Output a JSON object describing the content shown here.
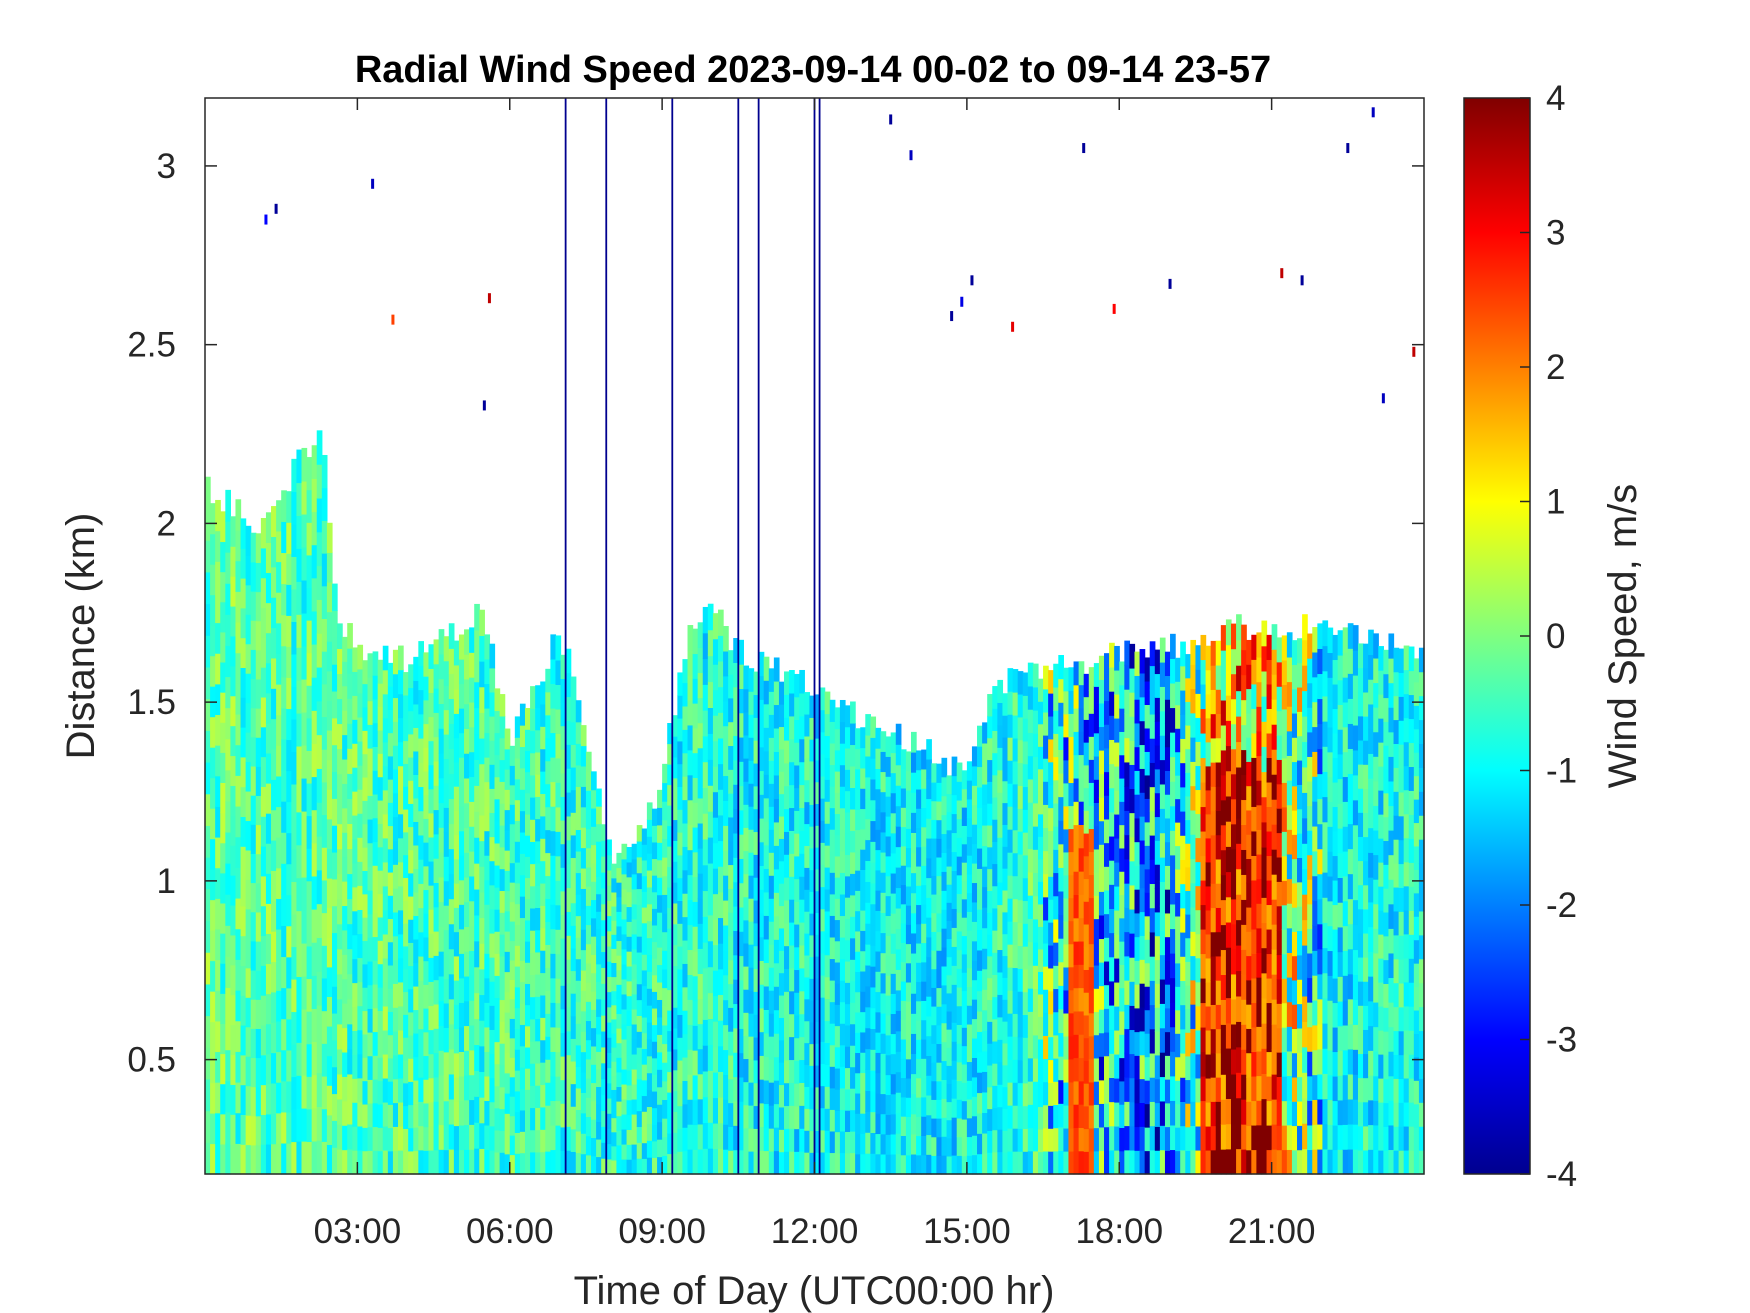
{
  "chart_data": {
    "type": "heatmap",
    "title": "Radial Wind Speed 2023-09-14 00-02 to 09-14 23-57",
    "xlabel": "Time of Day (UTC00:00 hr)",
    "ylabel": "Distance (km)",
    "colorbar_label": "Wind Speed, m/s",
    "colormap": "jet",
    "xlim": [
      0.0,
      24.0
    ],
    "ylim": [
      0.18,
      3.19
    ],
    "clim": [
      -4,
      4
    ],
    "x_ticks": [
      3,
      6,
      9,
      12,
      15,
      18,
      21
    ],
    "x_tick_labels": [
      "03:00",
      "06:00",
      "09:00",
      "12:00",
      "15:00",
      "18:00",
      "21:00"
    ],
    "y_ticks": [
      0.5,
      1,
      1.5,
      2,
      2.5,
      3
    ],
    "y_tick_labels": [
      "0.5",
      "1",
      "1.5",
      "2",
      "2.5",
      "3"
    ],
    "cbar_ticks": [
      4,
      3,
      2,
      1,
      0,
      -1,
      -2,
      -3,
      -4
    ],
    "cbar_tick_labels": [
      "4",
      "3",
      "2",
      "1",
      "0",
      "-1",
      "-2",
      "-3",
      "-4"
    ],
    "data_top_profile": {
      "hour": [
        0.0,
        0.5,
        1.0,
        1.5,
        2.0,
        2.3,
        2.6,
        3.0,
        4.0,
        5.0,
        5.5,
        6.0,
        6.5,
        7.0,
        7.5,
        8.0,
        8.5,
        9.0,
        9.5,
        10.0,
        10.5,
        11.0,
        11.5,
        12.0,
        13.0,
        14.0,
        14.7,
        15.0,
        15.5,
        16.0,
        17.0,
        18.0,
        19.0,
        20.0,
        21.0,
        22.0,
        23.0,
        24.0
      ],
      "top_km": [
        2.1,
        2.05,
        2.0,
        2.1,
        2.2,
        2.3,
        1.75,
        1.65,
        1.62,
        1.7,
        1.75,
        1.4,
        1.55,
        1.7,
        1.4,
        1.05,
        1.1,
        1.3,
        1.7,
        1.75,
        1.65,
        1.6,
        1.58,
        1.55,
        1.45,
        1.38,
        1.32,
        1.35,
        1.5,
        1.58,
        1.6,
        1.65,
        1.65,
        1.7,
        1.72,
        1.7,
        1.68,
        1.65
      ]
    },
    "regime_note_values": {
      "hour": [
        0,
        6,
        12,
        15,
        16.5,
        18,
        19,
        20,
        21,
        22,
        24
      ],
      "typical_speed_ms": [
        -0.3,
        -0.5,
        -0.9,
        -1.0,
        -0.5,
        -1.5,
        -1.8,
        1.6,
        1.2,
        -1.0,
        -0.8
      ]
    },
    "dropout_lines_hour": [
      7.1,
      7.9,
      9.2,
      10.5,
      10.9,
      12.0,
      12.1
    ],
    "sparse_dots_sample": [
      {
        "hour": 3.3,
        "km": 2.95,
        "value": -3.5
      },
      {
        "hour": 1.2,
        "km": 2.85,
        "value": -3.0
      },
      {
        "hour": 1.4,
        "km": 2.88,
        "value": -3.8
      },
      {
        "hour": 3.7,
        "km": 2.57,
        "value": 2.5
      },
      {
        "hour": 5.5,
        "km": 2.33,
        "value": -3.8
      },
      {
        "hour": 5.6,
        "km": 2.63,
        "value": 3.5
      },
      {
        "hour": 13.5,
        "km": 3.13,
        "value": -3.8
      },
      {
        "hour": 13.9,
        "km": 3.03,
        "value": -3.5
      },
      {
        "hour": 14.7,
        "km": 2.58,
        "value": -3.8
      },
      {
        "hour": 14.9,
        "km": 2.62,
        "value": -3.2
      },
      {
        "hour": 15.1,
        "km": 2.68,
        "value": -3.8
      },
      {
        "hour": 15.9,
        "km": 2.55,
        "value": 3.2
      },
      {
        "hour": 17.3,
        "km": 3.05,
        "value": -3.8
      },
      {
        "hour": 17.9,
        "km": 2.6,
        "value": 3.0
      },
      {
        "hour": 19.0,
        "km": 2.67,
        "value": -3.8
      },
      {
        "hour": 21.2,
        "km": 2.7,
        "value": 3.5
      },
      {
        "hour": 21.6,
        "km": 2.68,
        "value": -3.8
      },
      {
        "hour": 22.5,
        "km": 3.05,
        "value": -3.8
      },
      {
        "hour": 23.0,
        "km": 3.15,
        "value": -3.5
      },
      {
        "hour": 23.2,
        "km": 2.35,
        "value": -3.5
      },
      {
        "hour": 23.8,
        "km": 2.48,
        "value": 3.5
      }
    ]
  }
}
